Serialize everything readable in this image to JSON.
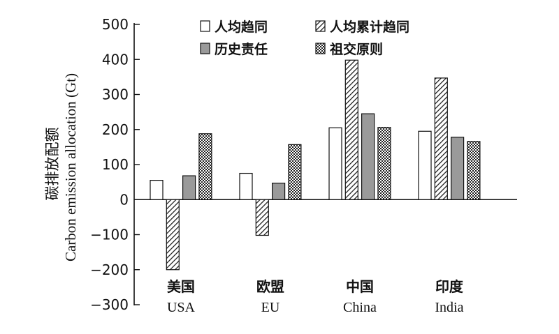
{
  "chart_data": {
    "type": "bar",
    "categories": [
      {
        "zh": "美国",
        "en": "USA"
      },
      {
        "zh": "欧盟",
        "en": "EU"
      },
      {
        "zh": "中国",
        "en": "China"
      },
      {
        "zh": "印度",
        "en": "India"
      }
    ],
    "series": [
      {
        "name": "人均趋同",
        "pattern": "white",
        "values": [
          55,
          75,
          205,
          195
        ]
      },
      {
        "name": "人均累计趋同",
        "pattern": "diagonal",
        "values": [
          -200,
          -102,
          398,
          347
        ]
      },
      {
        "name": "历史责任",
        "pattern": "gray",
        "values": [
          68,
          47,
          245,
          178
        ]
      },
      {
        "name": "祖交原则",
        "pattern": "crosshatch",
        "values": [
          188,
          157,
          206,
          166
        ]
      }
    ],
    "ylabel_zh": "碳排放配额",
    "ylabel": "Carbon emission allocation (Gt)",
    "ylim": [
      -300,
      500
    ],
    "yticks": [
      500,
      400,
      300,
      200,
      100,
      0,
      -100,
      -200,
      -300
    ],
    "ytick_labels": [
      "500",
      "400",
      "300",
      "200",
      "100",
      "0",
      "−100",
      "−200",
      "−300"
    ],
    "legend_position": "top-right"
  }
}
